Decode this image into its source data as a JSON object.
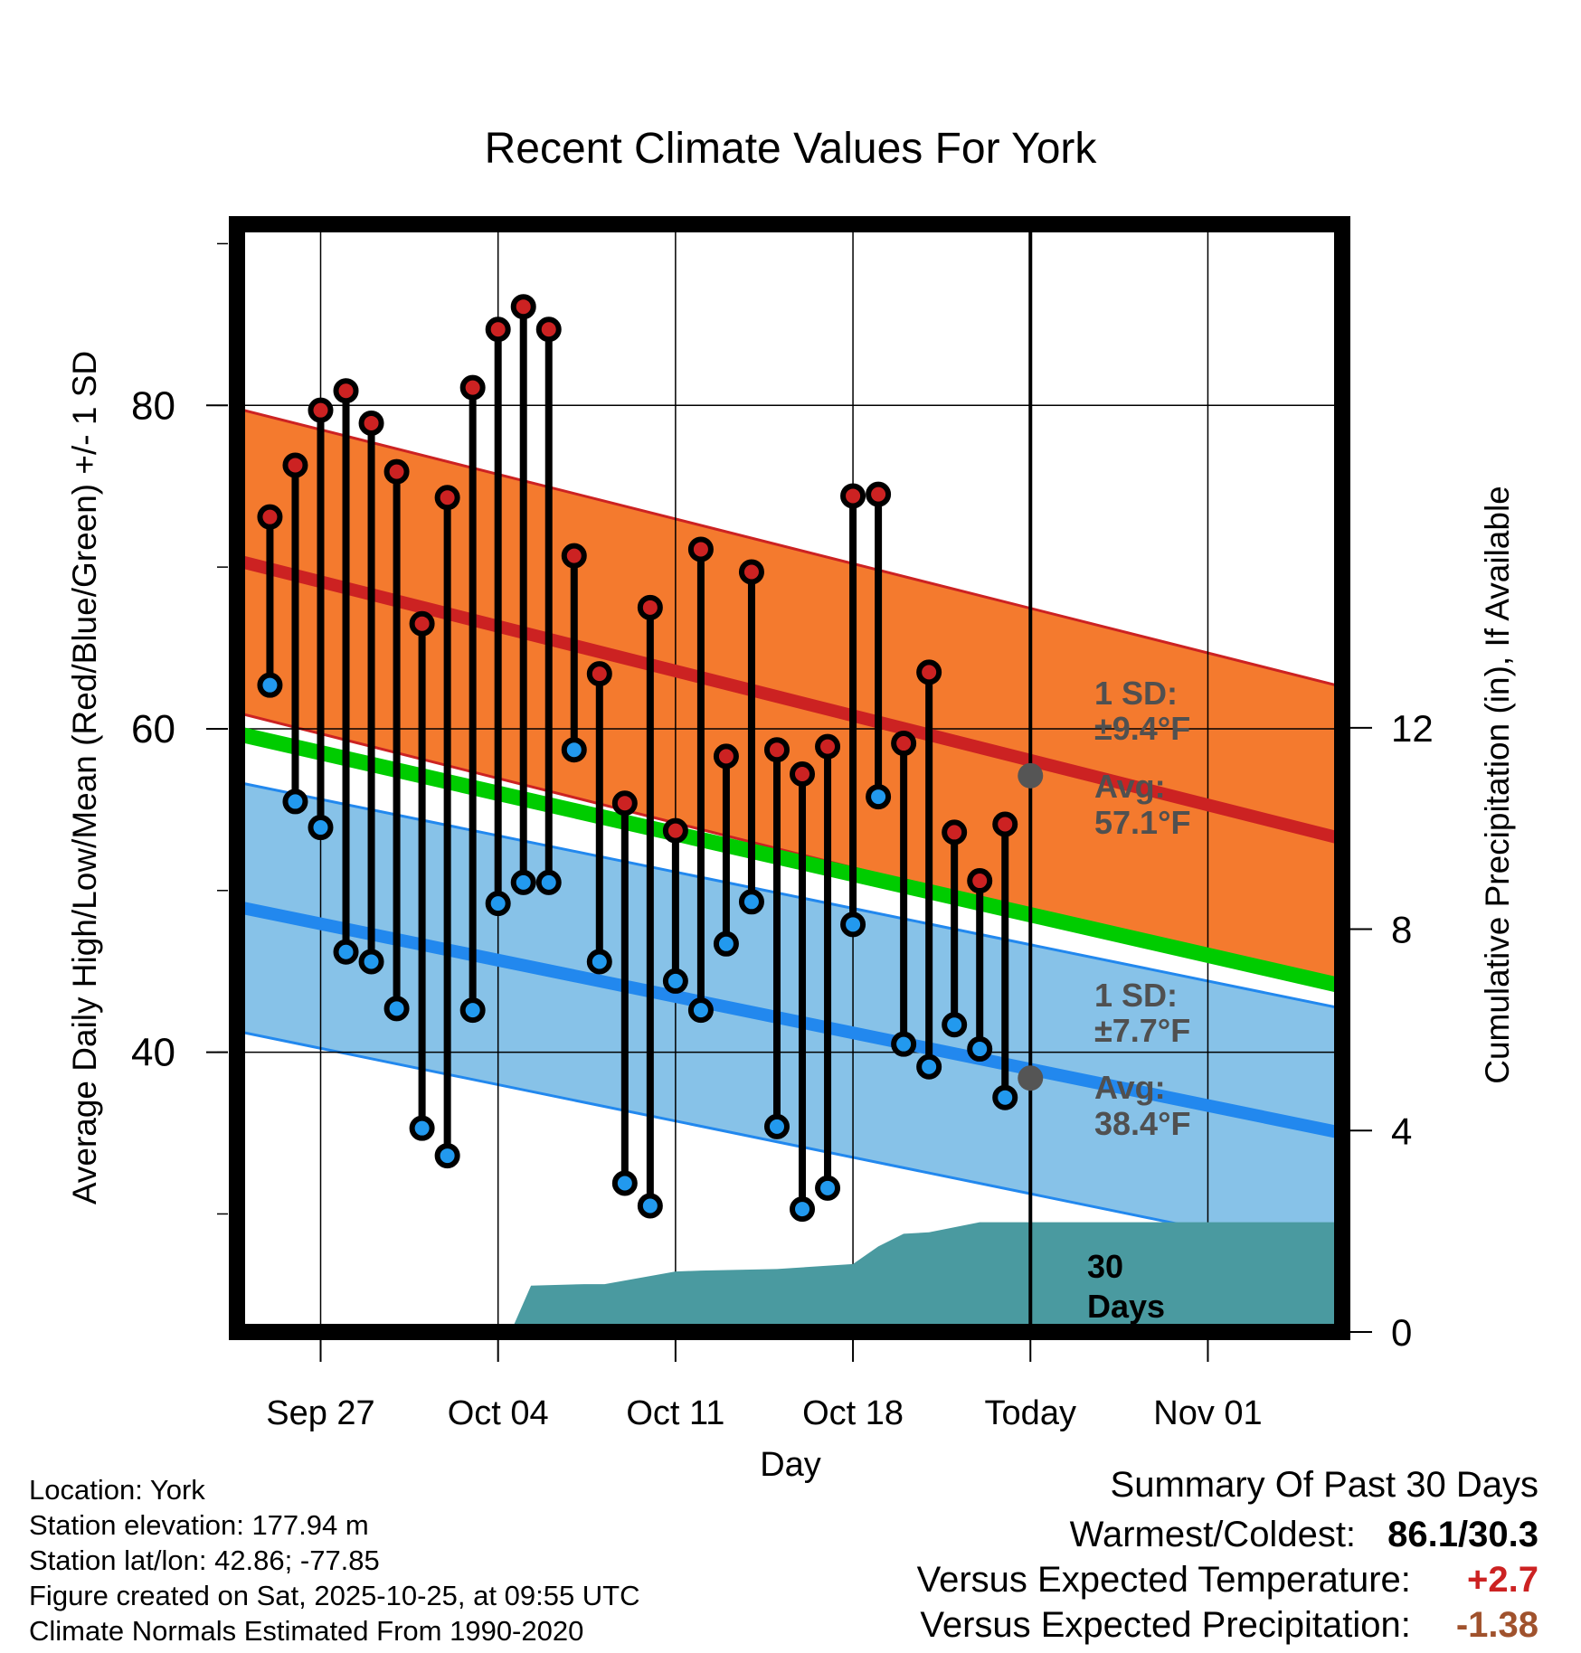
{
  "chart_data": {
    "type": "line",
    "title": "Recent Climate Values For York",
    "xlabel": "Day",
    "ylabel": "Average Daily High/Low/Mean (Red/Blue/Green) +/- 1 SD",
    "y2label": "Cumulative Precipitation (in), If Available",
    "ylim": [
      22.7,
      91.2
    ],
    "y2lim": [
      0,
      22
    ],
    "xlim_day_index": [
      -3.3,
      40.3
    ],
    "x_ticks": [
      {
        "day": 0,
        "label": "Sep 27"
      },
      {
        "day": 7,
        "label": "Oct 04"
      },
      {
        "day": 14,
        "label": "Oct 11"
      },
      {
        "day": 21,
        "label": "Oct 18"
      },
      {
        "day": 28,
        "label": "Today"
      },
      {
        "day": 35,
        "label": "Nov 01"
      }
    ],
    "y_ticks": [
      40,
      60,
      80
    ],
    "y_tick_labels": [
      "40",
      "60",
      "80"
    ],
    "y2_ticks": [
      0,
      4,
      8,
      12
    ],
    "y2_tick_labels": [
      "0",
      "4",
      "8",
      "12"
    ],
    "days": [
      -2,
      -1,
      0,
      1,
      2,
      3,
      4,
      5,
      6,
      7,
      8,
      9,
      10,
      11,
      12,
      13,
      14,
      15,
      16,
      17,
      18,
      19,
      20,
      21,
      22,
      23,
      24,
      25,
      26,
      27
    ],
    "series": [
      {
        "name": "Daily High",
        "color": "#cc2222",
        "values": [
          73.1,
          76.3,
          79.7,
          80.9,
          78.9,
          75.9,
          66.5,
          74.3,
          81.1,
          84.7,
          86.1,
          84.7,
          70.7,
          63.4,
          55.4,
          67.5,
          53.7,
          71.1,
          58.3,
          69.7,
          58.7,
          57.2,
          58.9,
          74.4,
          74.5,
          59.1,
          63.5,
          53.6,
          50.6,
          54.1
        ]
      },
      {
        "name": "Daily Low",
        "color": "#2299ee",
        "values": [
          62.7,
          55.5,
          53.9,
          46.2,
          45.6,
          42.7,
          35.3,
          33.6,
          42.6,
          49.2,
          50.5,
          50.5,
          58.7,
          45.6,
          31.9,
          30.5,
          44.4,
          42.6,
          46.7,
          49.3,
          35.4,
          30.3,
          31.6,
          47.9,
          55.8,
          40.5,
          39.1,
          41.7,
          40.2,
          37.2
        ]
      },
      {
        "name": "Normal High",
        "color": "#cc2222",
        "x": [
          -3.3,
          40.3
        ],
        "values": [
          70.4,
          53.2
        ]
      },
      {
        "name": "Normal High SD band",
        "sd": 9.4,
        "color": "#f47a2e"
      },
      {
        "name": "Normal Low",
        "color": "#2288ee",
        "x": [
          -3.3,
          40.3
        ],
        "values": [
          49.0,
          35.0
        ]
      },
      {
        "name": "Normal Low SD band",
        "sd": 7.7,
        "color": "#87c2e8"
      },
      {
        "name": "Normal Mean",
        "color": "#00cc00",
        "x": [
          -3.3,
          40.3
        ],
        "values": [
          59.7,
          44.1
        ]
      },
      {
        "name": "Cumulative Precipitation",
        "color": "#4a9aa0",
        "x": [
          7.5,
          8.3,
          10.4,
          11.2,
          14.0,
          15.0,
          18.0,
          21.0,
          22.0,
          23.0,
          24.0,
          26.0,
          28.0,
          40.3
        ],
        "values": [
          0,
          0.92,
          0.95,
          0.95,
          1.2,
          1.22,
          1.25,
          1.35,
          1.7,
          1.95,
          1.98,
          2.18,
          2.18,
          2.18
        ]
      }
    ],
    "annotations": {
      "high_sd_label_1": "1 SD:",
      "high_sd_label_2": "±9.4°F",
      "high_avg_label_1": "Avg:",
      "high_avg_label_2": "57.1°F",
      "high_avg_value": 57.1,
      "low_sd_label_1": "1 SD:",
      "low_sd_label_2": "±7.7°F",
      "low_avg_label_1": "Avg:",
      "low_avg_value": 38.4,
      "low_avg_label_2": "38.4°F",
      "days_label_1": "30",
      "days_label_2": "Days"
    },
    "today_day": 28,
    "grid": true,
    "legend": "none"
  },
  "info": {
    "location": "Location: York",
    "elevation": "Station elevation: 177.94 m",
    "latlon": "Station lat/lon: 42.86; -77.85",
    "created": "Figure created on Sat, 2025-10-25, at 09:55 UTC",
    "normals": "Climate Normals Estimated From 1990-2020"
  },
  "summary": {
    "title": "Summary Of Past 30 Days",
    "warm_cold_label": "Warmest/Coldest:",
    "warm_cold_value": "86.1/30.3",
    "temp_label": "Versus Expected Temperature:",
    "temp_value": "+2.7",
    "temp_color": "#cc2222",
    "precip_label": "Versus Expected Precipitation:",
    "precip_value": "-1.38",
    "precip_color": "#a0522d"
  }
}
